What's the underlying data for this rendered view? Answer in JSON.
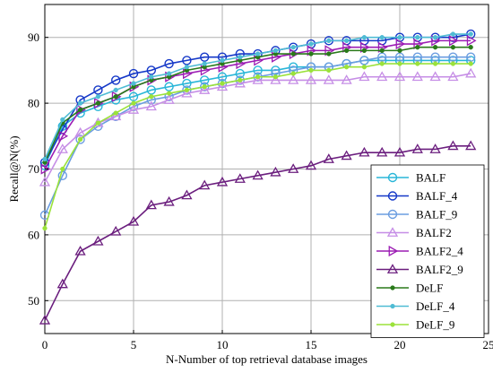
{
  "chart_data": {
    "type": "line",
    "title": "",
    "xlabel": "N-Number of top retrieval database images",
    "ylabel": "Recall@N(%)",
    "xlim": [
      0,
      25
    ],
    "ylim": [
      45,
      95
    ],
    "xticks": [
      0,
      5,
      10,
      15,
      20,
      25
    ],
    "yticks": [
      50,
      60,
      70,
      80,
      90
    ],
    "grid": true,
    "legend_position": "bottom-right",
    "x": [
      0,
      1,
      2,
      3,
      4,
      5,
      6,
      7,
      8,
      9,
      10,
      11,
      12,
      13,
      14,
      15,
      16,
      17,
      18,
      19,
      20,
      21,
      22,
      23,
      24
    ],
    "series": [
      {
        "name": "BALF",
        "color": "#29b6d8",
        "marker": "circle",
        "values": [
          70.5,
          76.5,
          78.5,
          79.5,
          80.5,
          81.0,
          82.0,
          82.5,
          83.0,
          83.5,
          84.0,
          84.5,
          85.0,
          85.0,
          85.5,
          85.5,
          85.5,
          86.0,
          86.5,
          86.5,
          86.5,
          86.5,
          86.5,
          86.5,
          86.5
        ]
      },
      {
        "name": "BALF_4",
        "color": "#1538c8",
        "marker": "circle",
        "values": [
          71.0,
          76.0,
          80.5,
          82.0,
          83.5,
          84.5,
          85.0,
          86.0,
          86.5,
          87.0,
          87.0,
          87.5,
          87.5,
          88.0,
          88.5,
          89.0,
          89.5,
          89.5,
          89.5,
          89.5,
          90.0,
          90.0,
          90.0,
          90.0,
          90.5
        ]
      },
      {
        "name": "BALF_9",
        "color": "#6b9de0",
        "marker": "circle",
        "values": [
          63.0,
          69.0,
          74.5,
          76.5,
          78.0,
          79.5,
          80.5,
          81.0,
          82.0,
          82.5,
          83.0,
          83.5,
          84.0,
          84.5,
          85.0,
          85.5,
          85.5,
          86.0,
          86.5,
          87.0,
          87.0,
          87.0,
          87.0,
          87.0,
          87.0
        ]
      },
      {
        "name": "BALF2",
        "color": "#c68ee6",
        "marker": "triangle-up",
        "values": [
          68.0,
          73.0,
          75.5,
          77.0,
          78.0,
          79.0,
          79.5,
          80.5,
          81.5,
          82.0,
          82.5,
          83.0,
          83.5,
          83.5,
          83.5,
          83.5,
          83.5,
          83.5,
          84.0,
          84.0,
          84.0,
          84.0,
          84.0,
          84.0,
          84.5
        ]
      },
      {
        "name": "BALF2_4",
        "color": "#9c1db4",
        "marker": "triangle-right",
        "values": [
          70.0,
          75.0,
          79.0,
          80.0,
          81.0,
          82.5,
          83.5,
          84.0,
          84.5,
          85.0,
          85.5,
          86.0,
          86.5,
          87.0,
          87.5,
          88.0,
          88.0,
          88.5,
          88.5,
          88.5,
          89.0,
          89.0,
          89.5,
          89.5,
          89.5
        ]
      },
      {
        "name": "BALF2_9",
        "color": "#6b1e7e",
        "marker": "triangle-up",
        "values": [
          47.0,
          52.5,
          57.5,
          59.0,
          60.5,
          62.0,
          64.5,
          65.0,
          66.0,
          67.5,
          68.0,
          68.5,
          69.0,
          69.5,
          70.0,
          70.5,
          71.5,
          72.0,
          72.5,
          72.5,
          72.5,
          73.0,
          73.0,
          73.5,
          73.5
        ]
      },
      {
        "name": "DeLF",
        "color": "#2a7a1a",
        "marker": "dot",
        "values": [
          71.0,
          77.0,
          79.0,
          80.0,
          81.0,
          82.5,
          83.5,
          84.0,
          85.0,
          85.5,
          86.0,
          86.5,
          87.0,
          87.5,
          87.5,
          87.5,
          87.5,
          88.0,
          88.0,
          88.0,
          88.0,
          88.5,
          88.5,
          88.5,
          88.5
        ]
      },
      {
        "name": "DeLF_4",
        "color": "#4fbcd4",
        "marker": "dot",
        "values": [
          71.5,
          77.5,
          80.0,
          81.0,
          82.0,
          83.0,
          84.0,
          84.5,
          85.5,
          86.0,
          86.5,
          87.0,
          87.5,
          88.0,
          88.5,
          89.0,
          89.5,
          89.5,
          90.0,
          90.0,
          90.0,
          90.0,
          90.0,
          90.5,
          90.5
        ]
      },
      {
        "name": "DeLF_9",
        "color": "#9be23a",
        "marker": "dot",
        "values": [
          61.0,
          70.0,
          74.5,
          77.0,
          78.5,
          80.0,
          81.0,
          81.5,
          82.0,
          82.5,
          83.0,
          83.5,
          84.0,
          84.0,
          84.5,
          85.0,
          85.0,
          85.5,
          85.5,
          86.0,
          86.0,
          86.0,
          86.0,
          86.0,
          86.0
        ]
      }
    ]
  }
}
